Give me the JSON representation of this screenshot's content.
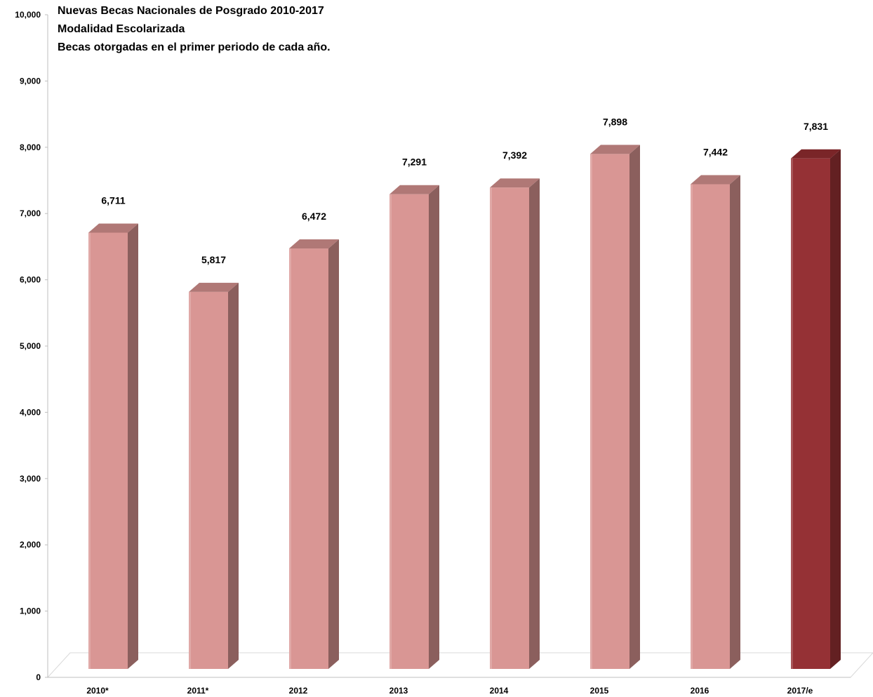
{
  "title_lines": [
    "Nuevas Becas Nacionales de Posgrado 2010-2017",
    "Modalidad Escolarizada",
    "Becas otorgadas en el primer periodo de cada año."
  ],
  "colors": {
    "bar_front": "#d99694",
    "bar_top": "#b07876",
    "bar_side": "#8b5f5d",
    "highlight_front": "#953135",
    "highlight_top": "#7a2528",
    "highlight_side": "#632022",
    "floor": "#d9d9d9"
  },
  "chart_data": {
    "type": "bar",
    "style": "3d-column",
    "categories": [
      "2010*",
      "2011*",
      "2012",
      "2013",
      "2014",
      "2015",
      "2016",
      "2017/e"
    ],
    "values": [
      6711,
      5817,
      6472,
      7291,
      7392,
      7898,
      7442,
      7831
    ],
    "data_labels": [
      "6,711",
      "5,817",
      "6,472",
      "7,291",
      "7,392",
      "7,898",
      "7,442",
      "7,831"
    ],
    "highlighted_category": "2017/e",
    "ylim": [
      0,
      10000
    ],
    "y_ticks": [
      0,
      1000,
      2000,
      3000,
      4000,
      5000,
      6000,
      7000,
      8000,
      9000,
      10000
    ],
    "y_tick_labels": [
      "0",
      "1,000",
      "2,000",
      "3,000",
      "4,000",
      "5,000",
      "6,000",
      "7,000",
      "8,000",
      "9,000",
      "10,000"
    ],
    "grid": false,
    "legend": "none",
    "xlabel": "",
    "ylabel": ""
  }
}
